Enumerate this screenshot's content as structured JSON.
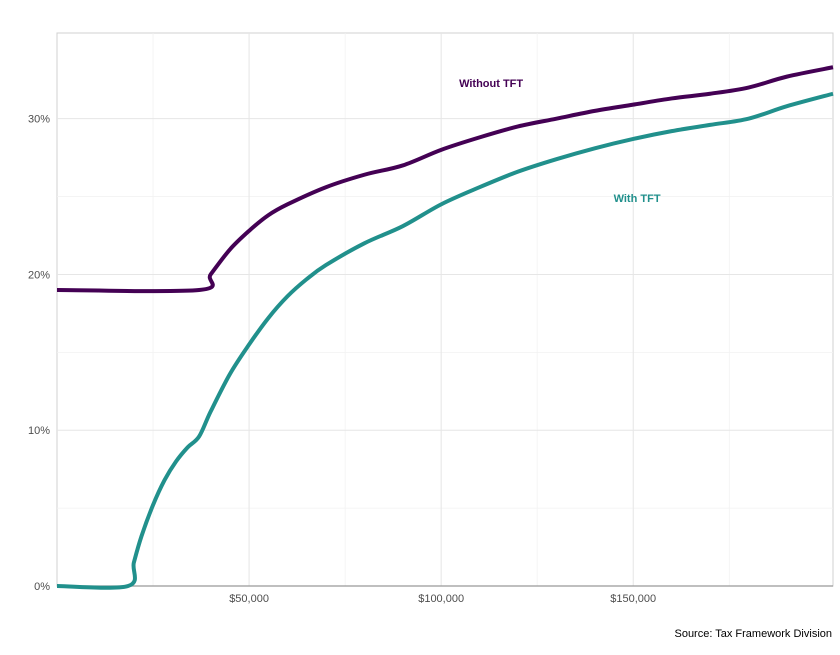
{
  "chart_data": {
    "type": "line",
    "title": "",
    "xlabel": "",
    "ylabel": "",
    "xlim": [
      0,
      202000
    ],
    "ylim": [
      0,
      0.355
    ],
    "x_ticks": [
      {
        "value": 50000,
        "label": "$50,000"
      },
      {
        "value": 100000,
        "label": "$100,000"
      },
      {
        "value": 150000,
        "label": "$150,000"
      }
    ],
    "x_minor_ticks": [
      25000,
      75000,
      125000,
      175000
    ],
    "y_ticks": [
      {
        "value": 0,
        "label": "0%"
      },
      {
        "value": 0.1,
        "label": "10%"
      },
      {
        "value": 0.2,
        "label": "20%"
      },
      {
        "value": 0.3,
        "label": "30%"
      }
    ],
    "y_minor_ticks": [
      0.05,
      0.15,
      0.25
    ],
    "grid": true,
    "legend": "direct labels on lines",
    "series": [
      {
        "name": "Without TFT",
        "color": "#440154",
        "points": [
          [
            0,
            0.19
          ],
          [
            37000,
            0.19
          ],
          [
            40000,
            0.2
          ],
          [
            45000,
            0.216
          ],
          [
            50000,
            0.228
          ],
          [
            55000,
            0.238
          ],
          [
            60000,
            0.245
          ],
          [
            70000,
            0.256
          ],
          [
            80000,
            0.264
          ],
          [
            90000,
            0.27
          ],
          [
            100000,
            0.28
          ],
          [
            110000,
            0.288
          ],
          [
            120000,
            0.295
          ],
          [
            130000,
            0.3
          ],
          [
            140000,
            0.305
          ],
          [
            150000,
            0.309
          ],
          [
            160000,
            0.313
          ],
          [
            170000,
            0.316
          ],
          [
            180000,
            0.32
          ],
          [
            190000,
            0.327
          ],
          [
            202000,
            0.333
          ]
        ]
      },
      {
        "name": "With TFT",
        "color": "#21908C",
        "points": [
          [
            0,
            0
          ],
          [
            18500,
            0
          ],
          [
            20000,
            0.015
          ],
          [
            22000,
            0.032
          ],
          [
            25000,
            0.052
          ],
          [
            28000,
            0.068
          ],
          [
            31000,
            0.08
          ],
          [
            34000,
            0.089
          ],
          [
            37000,
            0.096
          ],
          [
            40000,
            0.112
          ],
          [
            45000,
            0.136
          ],
          [
            50000,
            0.155
          ],
          [
            55000,
            0.172
          ],
          [
            60000,
            0.186
          ],
          [
            65000,
            0.197
          ],
          [
            70000,
            0.206
          ],
          [
            80000,
            0.22
          ],
          [
            90000,
            0.231
          ],
          [
            100000,
            0.245
          ],
          [
            110000,
            0.256
          ],
          [
            120000,
            0.266
          ],
          [
            130000,
            0.274
          ],
          [
            140000,
            0.281
          ],
          [
            150000,
            0.287
          ],
          [
            160000,
            0.292
          ],
          [
            170000,
            0.296
          ],
          [
            180000,
            0.3
          ],
          [
            190000,
            0.308
          ],
          [
            202000,
            0.316
          ]
        ]
      }
    ],
    "annotations": [
      {
        "text": "Without TFT",
        "x": 113000,
        "y": 0.323,
        "series": "Without TFT"
      },
      {
        "text": "With TFT",
        "x": 151000,
        "y": 0.249,
        "series": "With TFT"
      }
    ]
  },
  "source_note": "Source: Tax Framework Division"
}
